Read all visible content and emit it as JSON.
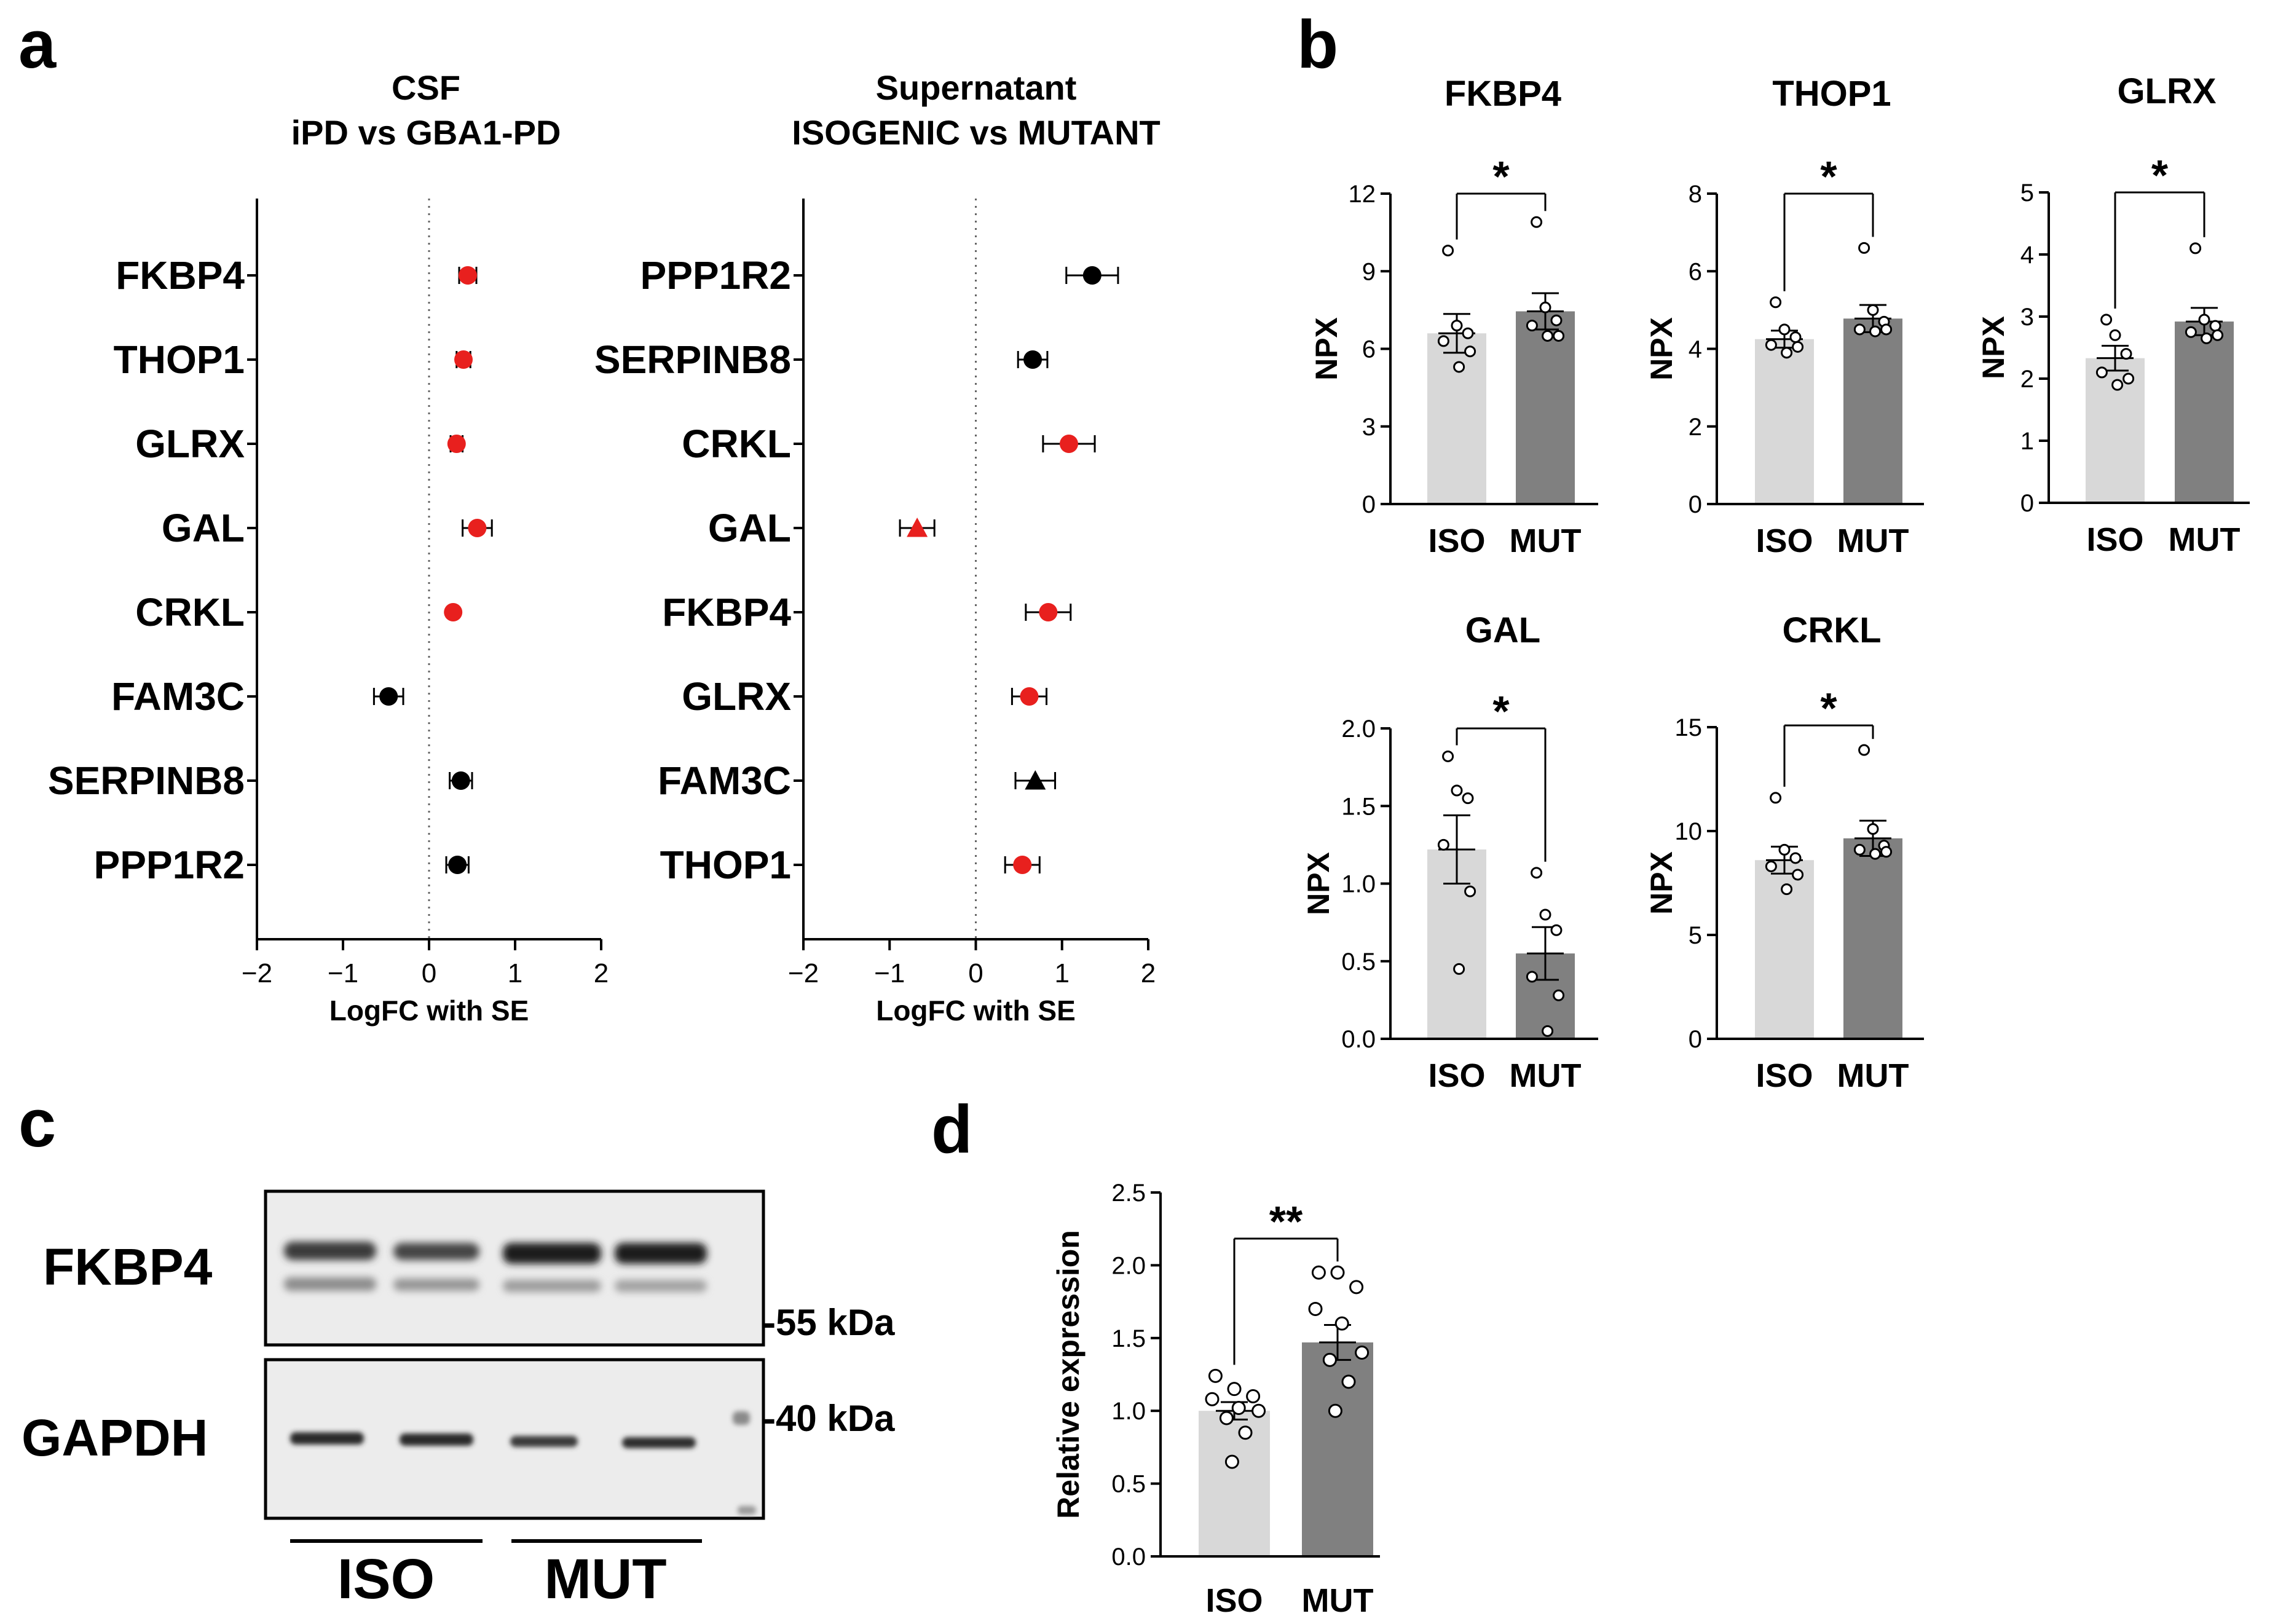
{
  "panel_labels": {
    "a": "a",
    "b": "b",
    "c": "c",
    "d": "d"
  },
  "chart_data": [
    {
      "id": "a-left",
      "type": "scatter",
      "title": [
        "CSF",
        "iPD vs GBA1-PD"
      ],
      "xlabel": "LogFC with SE",
      "ylabel": "",
      "xlim": [
        -2,
        2
      ],
      "xticks": [
        "−2",
        "−1",
        "0",
        "1",
        "2"
      ],
      "points": [
        {
          "gene": "FKBP4",
          "logfc": 0.45,
          "se": 0.1,
          "color": "#e8201e",
          "shape": "circle"
        },
        {
          "gene": "THOP1",
          "logfc": 0.4,
          "se": 0.08,
          "color": "#e8201e",
          "shape": "circle"
        },
        {
          "gene": "GLRX",
          "logfc": 0.32,
          "se": 0.07,
          "color": "#e8201e",
          "shape": "circle"
        },
        {
          "gene": "GAL",
          "logfc": 0.56,
          "se": 0.17,
          "color": "#e8201e",
          "shape": "circle"
        },
        {
          "gene": "CRKL",
          "logfc": 0.28,
          "se": 0.0,
          "color": "#e8201e",
          "shape": "circle"
        },
        {
          "gene": "FAM3C",
          "logfc": -0.47,
          "se": 0.17,
          "color": "#000000",
          "shape": "circle"
        },
        {
          "gene": "SERPINB8",
          "logfc": 0.37,
          "se": 0.13,
          "color": "#000000",
          "shape": "circle"
        },
        {
          "gene": "PPP1R2",
          "logfc": 0.33,
          "se": 0.13,
          "color": "#000000",
          "shape": "circle"
        }
      ]
    },
    {
      "id": "a-right",
      "type": "scatter",
      "title": [
        "Supernatant",
        "ISOGENIC vs MUTANT"
      ],
      "xlabel": "LogFC with SE",
      "ylabel": "",
      "xlim": [
        -2,
        2
      ],
      "xticks": [
        "−2",
        "−1",
        "0",
        "1",
        "2"
      ],
      "points": [
        {
          "gene": "PPP1R2",
          "logfc": 1.35,
          "se": 0.3,
          "color": "#000000",
          "shape": "circle"
        },
        {
          "gene": "SERPINB8",
          "logfc": 0.66,
          "se": 0.17,
          "color": "#000000",
          "shape": "circle"
        },
        {
          "gene": "CRKL",
          "logfc": 1.08,
          "se": 0.3,
          "color": "#e8201e",
          "shape": "circle"
        },
        {
          "gene": "GAL",
          "logfc": -0.68,
          "se": 0.2,
          "color": "#e8201e",
          "shape": "triangle"
        },
        {
          "gene": "FKBP4",
          "logfc": 0.84,
          "se": 0.26,
          "color": "#e8201e",
          "shape": "circle"
        },
        {
          "gene": "GLRX",
          "logfc": 0.62,
          "se": 0.2,
          "color": "#e8201e",
          "shape": "circle"
        },
        {
          "gene": "FAM3C",
          "logfc": 0.69,
          "se": 0.23,
          "color": "#000000",
          "shape": "triangle"
        },
        {
          "gene": "THOP1",
          "logfc": 0.54,
          "se": 0.2,
          "color": "#e8201e",
          "shape": "circle"
        }
      ]
    },
    {
      "id": "b-FKBP4",
      "type": "bar",
      "title": "FKBP4",
      "ylabel": "NPX",
      "categories": [
        "ISO",
        "MUT"
      ],
      "ylim": [
        0,
        12
      ],
      "yticks": [
        0,
        3,
        6,
        9,
        12
      ],
      "means": [
        6.6,
        7.45
      ],
      "sem": [
        0.75,
        0.7
      ],
      "points": [
        [
          9.8,
          6.9,
          6.6,
          6.3,
          5.9,
          5.3
        ],
        [
          10.9,
          7.6,
          7.1,
          6.9,
          6.5,
          6.5
        ]
      ],
      "significance": "*"
    },
    {
      "id": "b-THOP1",
      "type": "bar",
      "title": "THOP1",
      "ylabel": "NPX",
      "categories": [
        "ISO",
        "MUT"
      ],
      "ylim": [
        0,
        8
      ],
      "yticks": [
        0,
        2,
        4,
        6,
        8
      ],
      "means": [
        4.25,
        4.78
      ],
      "sem": [
        0.22,
        0.35
      ],
      "points": [
        [
          5.2,
          4.5,
          4.3,
          4.1,
          4.05,
          3.9
        ],
        [
          6.6,
          5.0,
          4.7,
          4.5,
          4.5,
          4.45
        ]
      ],
      "significance": "*"
    },
    {
      "id": "b-GLRX",
      "type": "bar",
      "title": "GLRX",
      "ylabel": "NPX",
      "categories": [
        "ISO",
        "MUT"
      ],
      "ylim": [
        0,
        5
      ],
      "yticks": [
        0,
        1,
        2,
        3,
        4,
        5
      ],
      "means": [
        2.33,
        2.92
      ],
      "sem": [
        0.2,
        0.22
      ],
      "points": [
        [
          2.95,
          2.7,
          2.4,
          2.1,
          2.0,
          1.9
        ],
        [
          4.1,
          2.95,
          2.85,
          2.75,
          2.7,
          2.65
        ]
      ],
      "significance": "*"
    },
    {
      "id": "b-GAL",
      "type": "bar",
      "title": "GAL",
      "ylabel": "NPX",
      "categories": [
        "ISO",
        "MUT"
      ],
      "ylim": [
        0,
        2.0
      ],
      "yticks": [
        "0.0",
        "0.5",
        "1.0",
        "1.5",
        "2.0"
      ],
      "means": [
        1.22,
        0.55
      ],
      "sem": [
        0.22,
        0.17
      ],
      "points": [
        [
          1.82,
          1.6,
          1.55,
          1.25,
          0.95,
          0.45
        ],
        [
          1.07,
          0.8,
          0.7,
          0.4,
          0.28,
          0.05
        ]
      ],
      "significance": "*"
    },
    {
      "id": "b-CRKL",
      "type": "bar",
      "title": "CRKL",
      "ylabel": "NPX",
      "categories": [
        "ISO",
        "MUT"
      ],
      "ylim": [
        0,
        15
      ],
      "yticks": [
        0,
        5,
        10,
        15
      ],
      "means": [
        8.6,
        9.65
      ],
      "sem": [
        0.65,
        0.85
      ],
      "points": [
        [
          11.6,
          9.1,
          8.7,
          8.3,
          7.9,
          7.2
        ],
        [
          13.9,
          10.1,
          9.3,
          9.1,
          9.0,
          8.9
        ]
      ],
      "significance": "*"
    },
    {
      "id": "d",
      "type": "bar",
      "title": "",
      "ylabel": "Relative expression",
      "categories": [
        "ISO",
        "MUT"
      ],
      "ylim": [
        0,
        2.5
      ],
      "yticks": [
        "0.0",
        "0.5",
        "1.0",
        "1.5",
        "2.0",
        "2.5"
      ],
      "means": [
        1.0,
        1.47
      ],
      "sem": [
        0.06,
        0.12
      ],
      "points": [
        [
          1.24,
          1.15,
          1.1,
          1.08,
          1.02,
          1.0,
          0.95,
          0.85,
          0.65
        ],
        [
          1.95,
          1.95,
          1.85,
          1.7,
          1.6,
          1.4,
          1.35,
          1.2,
          1.0
        ]
      ],
      "significance": "**"
    }
  ],
  "blot": {
    "rows": [
      {
        "label": "FKBP4",
        "marker": "-55 kDa"
      },
      {
        "label": "GAPDH",
        "marker": "-40 kDa"
      }
    ],
    "groups": [
      "ISO",
      "MUT"
    ]
  },
  "colors": {
    "iso_bar": "#d8d8d8",
    "mut_bar": "#808080",
    "red": "#e8201e",
    "black": "#000000"
  }
}
